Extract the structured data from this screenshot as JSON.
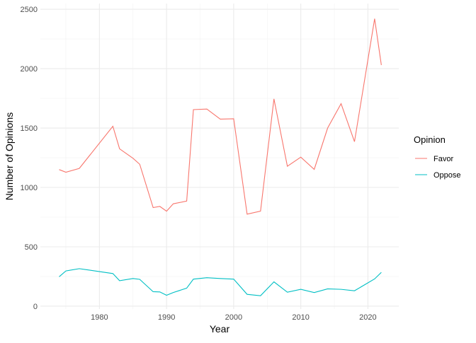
{
  "chart_data": {
    "type": "line",
    "x_label": "Year",
    "y_label": "Number of Opinions",
    "legend_title": "Opinion",
    "legend_position": "right",
    "x": [
      1974,
      1975,
      1977,
      1982,
      1983,
      1985,
      1986,
      1988,
      1989,
      1990,
      1991,
      1993,
      1994,
      1996,
      1998,
      2000,
      2002,
      2004,
      2006,
      2008,
      2010,
      2012,
      2014,
      2016,
      2018,
      2021,
      2022
    ],
    "series": [
      {
        "name": "Favor",
        "color": "#F8766D",
        "values": [
          1150,
          1128,
          1160,
          1515,
          1325,
          1245,
          1195,
          830,
          840,
          800,
          862,
          885,
          1655,
          1660,
          1575,
          1578,
          775,
          800,
          1745,
          1178,
          1255,
          1152,
          1500,
          1705,
          1385,
          2420,
          2030
        ]
      },
      {
        "name": "Oppose",
        "color": "#00BFC4",
        "values": [
          248,
          297,
          316,
          275,
          215,
          233,
          226,
          122,
          120,
          92,
          115,
          152,
          228,
          240,
          233,
          228,
          100,
          88,
          205,
          118,
          142,
          115,
          146,
          142,
          130,
          230,
          285
        ]
      }
    ],
    "xlim": [
      1971.2,
      2024.6
    ],
    "xticks": [
      1980,
      1990,
      2000,
      2010,
      2020
    ],
    "ylim": [
      -24,
      2548
    ],
    "yticks": [
      0,
      500,
      1000,
      1500,
      2000,
      2500
    ],
    "grid": true
  }
}
